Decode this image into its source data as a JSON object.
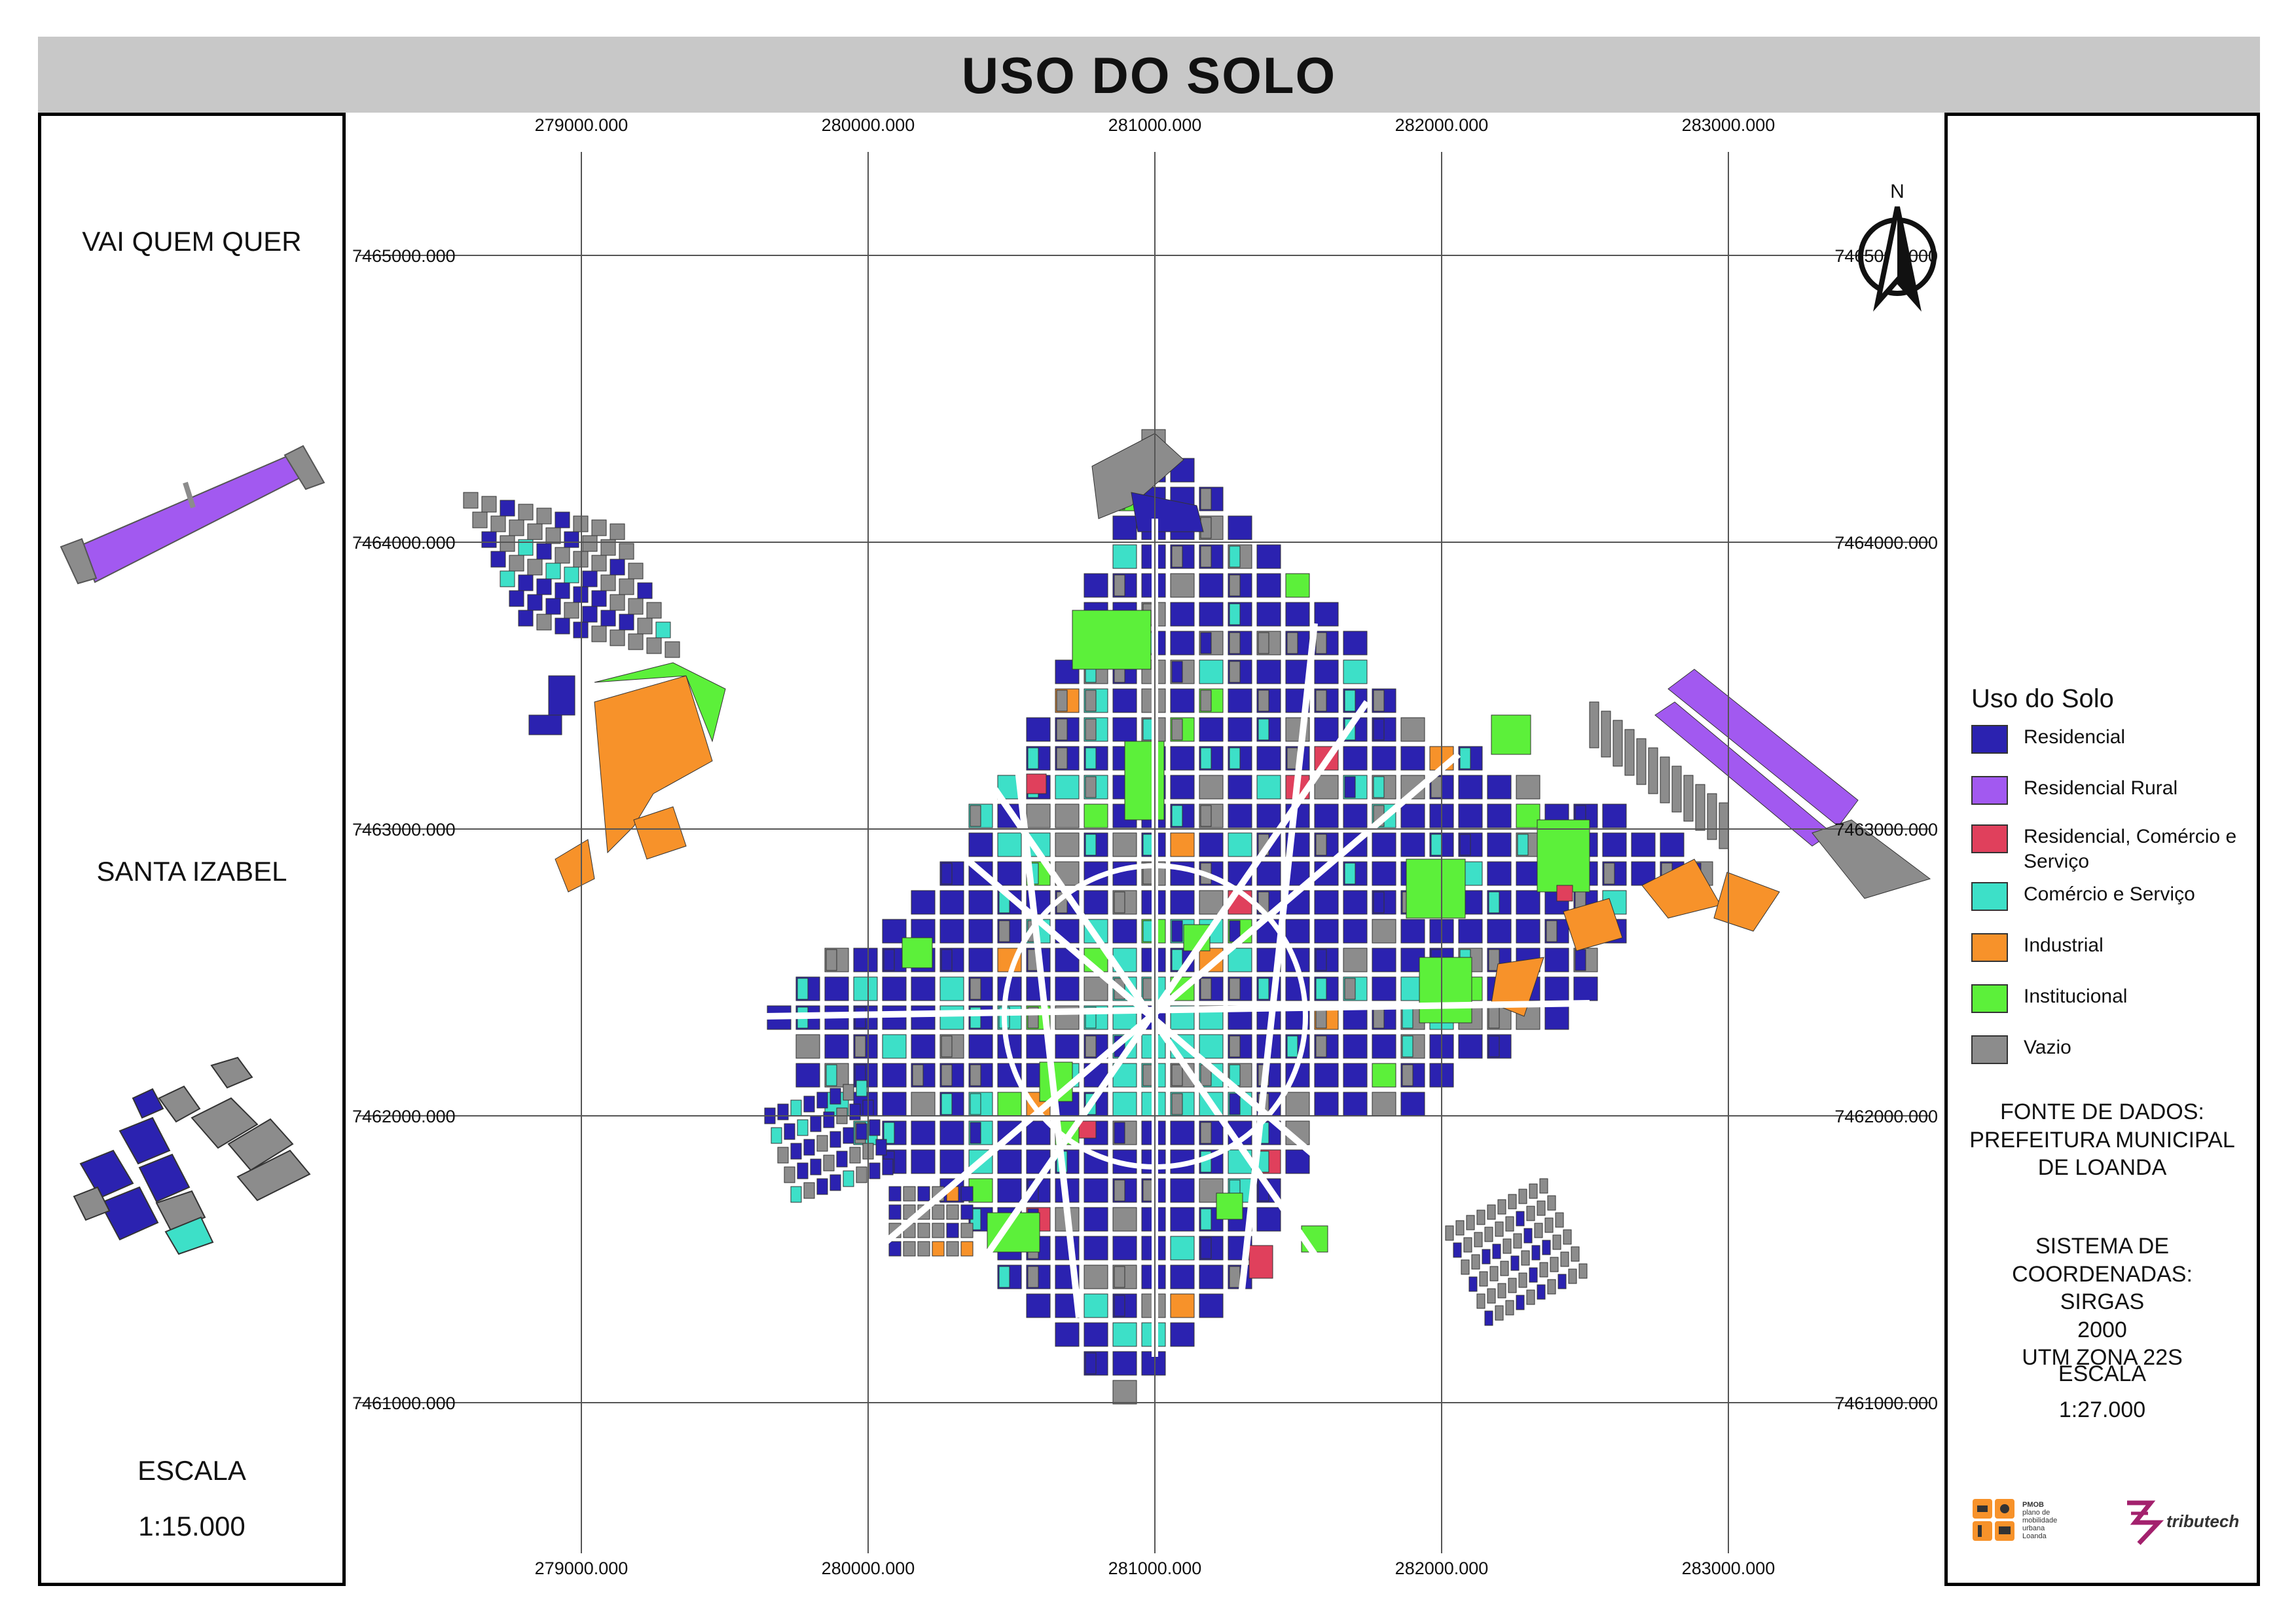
{
  "title": "USO DO SOLO",
  "insets": {
    "vai_quem_quer": "VAI QUEM QUER",
    "santa_izabel": "SANTA IZABEL",
    "scale_label": "ESCALA",
    "scale_value": "1:15.000"
  },
  "grid": {
    "x_labels": [
      "279000.000",
      "280000.000",
      "281000.000",
      "282000.000",
      "283000.000"
    ],
    "y_labels": [
      "7465000.000",
      "7464000.000",
      "7463000.000",
      "7462000.000",
      "7461000.000"
    ]
  },
  "north_arrow": {
    "label": "N"
  },
  "legend": {
    "title": "Uso do Solo",
    "items": [
      {
        "label": "Residencial",
        "color": "#2b22b0"
      },
      {
        "label": "Residencial Rural",
        "color": "#a259f0"
      },
      {
        "label": "Residencial, Comércio e Serviço",
        "color": "#e0405c"
      },
      {
        "label": "Comércio e Serviço",
        "color": "#3de0c8"
      },
      {
        "label": "Industrial",
        "color": "#f7922a"
      },
      {
        "label": "Institucional",
        "color": "#5cf03a"
      },
      {
        "label": "Vazio",
        "color": "#8c8c8c"
      }
    ]
  },
  "source": {
    "lines": [
      "FONTE DE DADOS:",
      "PREFEITURA MUNICIPAL",
      "DE LOANDA"
    ]
  },
  "crs": {
    "lines": [
      "SISTEMA DE COORDENADAS:",
      "SIRGAS",
      "2000",
      "UTM ZONA 22S"
    ]
  },
  "scale": {
    "label": "ESCALA",
    "value": "1:27.000"
  },
  "logos": {
    "pmob_lines": [
      "PMOB",
      "plano de",
      "mobilidade",
      "urbana"
    ],
    "pmob_place": "Loanda",
    "tributech": "tributech"
  }
}
